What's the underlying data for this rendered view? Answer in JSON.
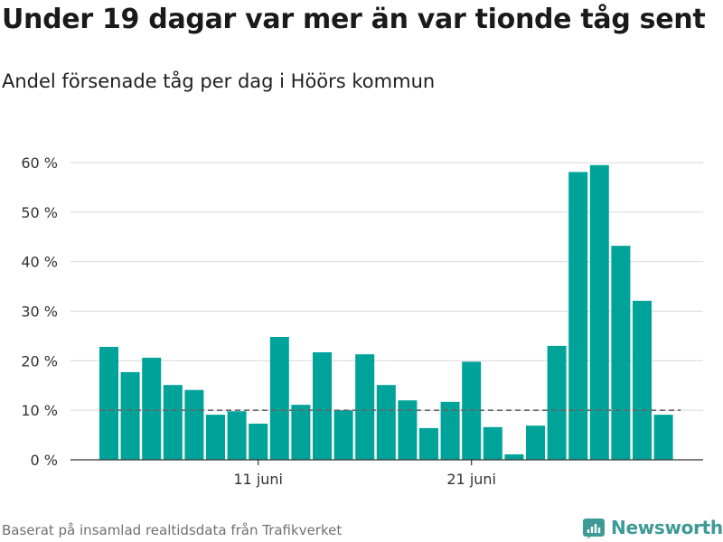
{
  "title": "Under 19 dagar var mer än var tionde tåg sent",
  "subtitle": "Andel försenade tåg per dag i Höörs kommun",
  "footer": "Baserat på insamlad realtidsdata från Trafikverket",
  "brand": "Newsworthy",
  "colors": {
    "bar": "#00a399",
    "grid": "#d9d9d9",
    "reference_line": "#666666",
    "brand": "#3e9a96"
  },
  "chart_data": {
    "type": "bar",
    "title": "Under 19 dagar var mer än var tionde tåg sent",
    "subtitle": "Andel försenade tåg per dag i Höörs kommun",
    "xlabel": "",
    "ylabel": "",
    "y_unit": "%",
    "ylim": [
      0,
      60
    ],
    "yticks": [
      0,
      10,
      20,
      30,
      40,
      50,
      60
    ],
    "ytick_labels": [
      "0 %",
      "10 %",
      "20 %",
      "30 %",
      "40 %",
      "50 %",
      "60 %"
    ],
    "x_start": "2019-06-04",
    "categories": [
      "4 juni",
      "5 juni",
      "6 juni",
      "7 juni",
      "8 juni",
      "9 juni",
      "10 juni",
      "11 juni",
      "12 juni",
      "13 juni",
      "14 juni",
      "15 juni",
      "16 juni",
      "17 juni",
      "18 juni",
      "19 juni",
      "20 juni",
      "21 juni",
      "22 juni",
      "23 juni",
      "24 juni",
      "25 juni",
      "26 juni",
      "27 juni",
      "28 juni",
      "29 juni",
      "30 juni"
    ],
    "xticks": [
      {
        "category": "11 juni",
        "label": "11 juni"
      },
      {
        "category": "21 juni",
        "label": "21 juni"
      }
    ],
    "values": [
      22.8,
      17.7,
      20.6,
      15.1,
      14.1,
      9.1,
      9.8,
      7.3,
      24.8,
      11.1,
      21.7,
      10.0,
      21.3,
      15.1,
      12.0,
      6.4,
      11.7,
      19.8,
      6.6,
      1.1,
      6.9,
      23.0,
      58.1,
      59.5,
      43.2,
      32.1,
      9.1
    ],
    "reference_line": {
      "value": 10,
      "style": "dashed"
    },
    "grid": true,
    "legend": "none"
  }
}
